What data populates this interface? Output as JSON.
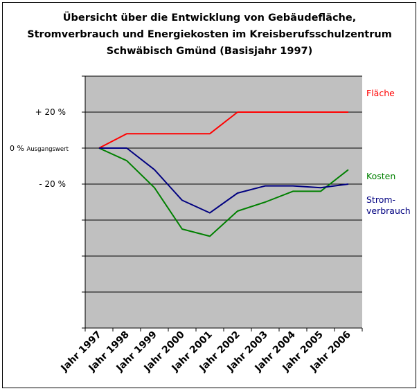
{
  "chart_data": {
    "type": "line",
    "title_lines": [
      "Übersicht über die Entwicklung von Gebäudefläche,",
      "Stromverbrauch und Energiekosten im Kreisberufsschulzentrum",
      "Schwäbisch Gmünd (Basisjahr 1997)"
    ],
    "categories": [
      "Jahr 1997",
      "Jahr 1998",
      "Jahr 1999",
      "Jahr 2000",
      "Jahr 2001",
      "Jahr 2002",
      "Jahr 2003",
      "Jahr 2004",
      "Jahr 2005",
      "Jahr 2006"
    ],
    "y_tick_labels": [
      {
        "value": 20,
        "label": "+ 20 %",
        "small": ""
      },
      {
        "value": 0,
        "label": "0 %",
        "small": "Ausgangswert"
      },
      {
        "value": -20,
        "label": "- 20 %",
        "small": ""
      }
    ],
    "ylim": [
      -100,
      40
    ],
    "grid_values": [
      40,
      20,
      0,
      -20,
      -40,
      -60,
      -80,
      -100
    ],
    "series": [
      {
        "name": "Fläche",
        "color": "#ff0000",
        "label_lines": [
          "Fläche"
        ],
        "values": [
          0,
          8,
          8,
          8,
          8,
          20,
          20,
          20,
          20,
          20
        ]
      },
      {
        "name": "Kosten",
        "color": "#008000",
        "label_lines": [
          "Kosten"
        ],
        "values": [
          0,
          -7,
          -22,
          -45,
          -49,
          -35,
          -30,
          -24,
          -24,
          -12
        ]
      },
      {
        "name": "Stromverbrauch",
        "color": "#000080",
        "label_lines": [
          "Strom-",
          "verbrauch"
        ],
        "values": [
          0,
          0,
          -12,
          -29,
          -36,
          -25,
          -21,
          -21,
          -22,
          -20
        ]
      }
    ],
    "plot_bg": "#c0c0c0",
    "grid": true
  }
}
